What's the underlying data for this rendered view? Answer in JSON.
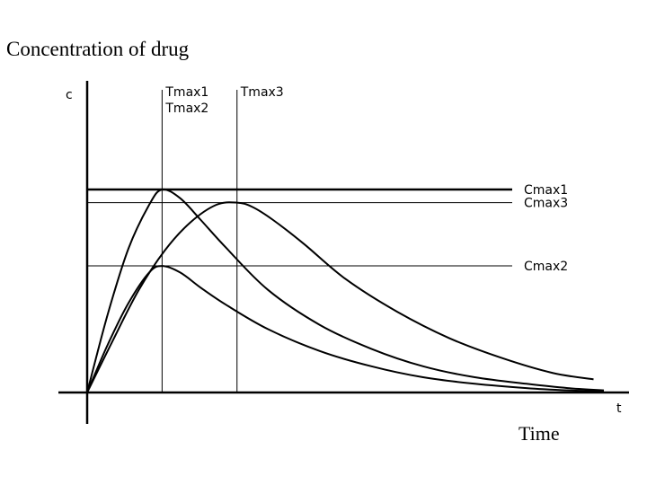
{
  "title": "Concentration of drug",
  "x_caption": "Time",
  "chart_data": {
    "type": "line",
    "axis_labels": {
      "y": "c",
      "x": "t"
    },
    "grid": false,
    "xlim": [
      0,
      1
    ],
    "ylim": [
      0,
      1
    ],
    "series": [
      {
        "curve": 1,
        "x": [
          0,
          0.04,
          0.08,
          0.12,
          0.145,
          0.18,
          0.22,
          0.27,
          0.35,
          0.45,
          0.55,
          0.65,
          0.75,
          0.85,
          0.93,
          1.0
        ],
        "y": [
          0,
          0.36,
          0.66,
          0.86,
          0.93,
          0.89,
          0.79,
          0.66,
          0.47,
          0.31,
          0.2,
          0.12,
          0.07,
          0.04,
          0.02,
          0.01
        ]
      },
      {
        "curve": 2,
        "x": [
          0,
          0.04,
          0.08,
          0.12,
          0.145,
          0.18,
          0.22,
          0.27,
          0.35,
          0.45,
          0.55,
          0.65,
          0.75,
          0.85,
          0.93,
          1.0
        ],
        "y": [
          0,
          0.22,
          0.41,
          0.55,
          0.58,
          0.55,
          0.48,
          0.4,
          0.29,
          0.19,
          0.12,
          0.07,
          0.04,
          0.02,
          0.01,
          0.005
        ]
      },
      {
        "curve": 3,
        "x": [
          0,
          0.05,
          0.1,
          0.15,
          0.2,
          0.25,
          0.29,
          0.32,
          0.36,
          0.42,
          0.5,
          0.6,
          0.7,
          0.8,
          0.9,
          0.98
        ],
        "y": [
          0,
          0.24,
          0.47,
          0.65,
          0.78,
          0.86,
          0.87,
          0.85,
          0.79,
          0.68,
          0.52,
          0.37,
          0.25,
          0.16,
          0.09,
          0.06
        ]
      }
    ],
    "reference_lines": {
      "vertical": [
        {
          "at": 0.145,
          "labels": [
            "Tmax1",
            "Tmax2"
          ]
        },
        {
          "at": 0.29,
          "labels": [
            "Tmax3"
          ]
        }
      ],
      "horizontal": [
        {
          "at": 0.93,
          "label": "Cmax1",
          "bold": true
        },
        {
          "at": 0.87,
          "label": "Cmax3"
        },
        {
          "at": 0.58,
          "label": "Cmax2"
        }
      ]
    }
  }
}
